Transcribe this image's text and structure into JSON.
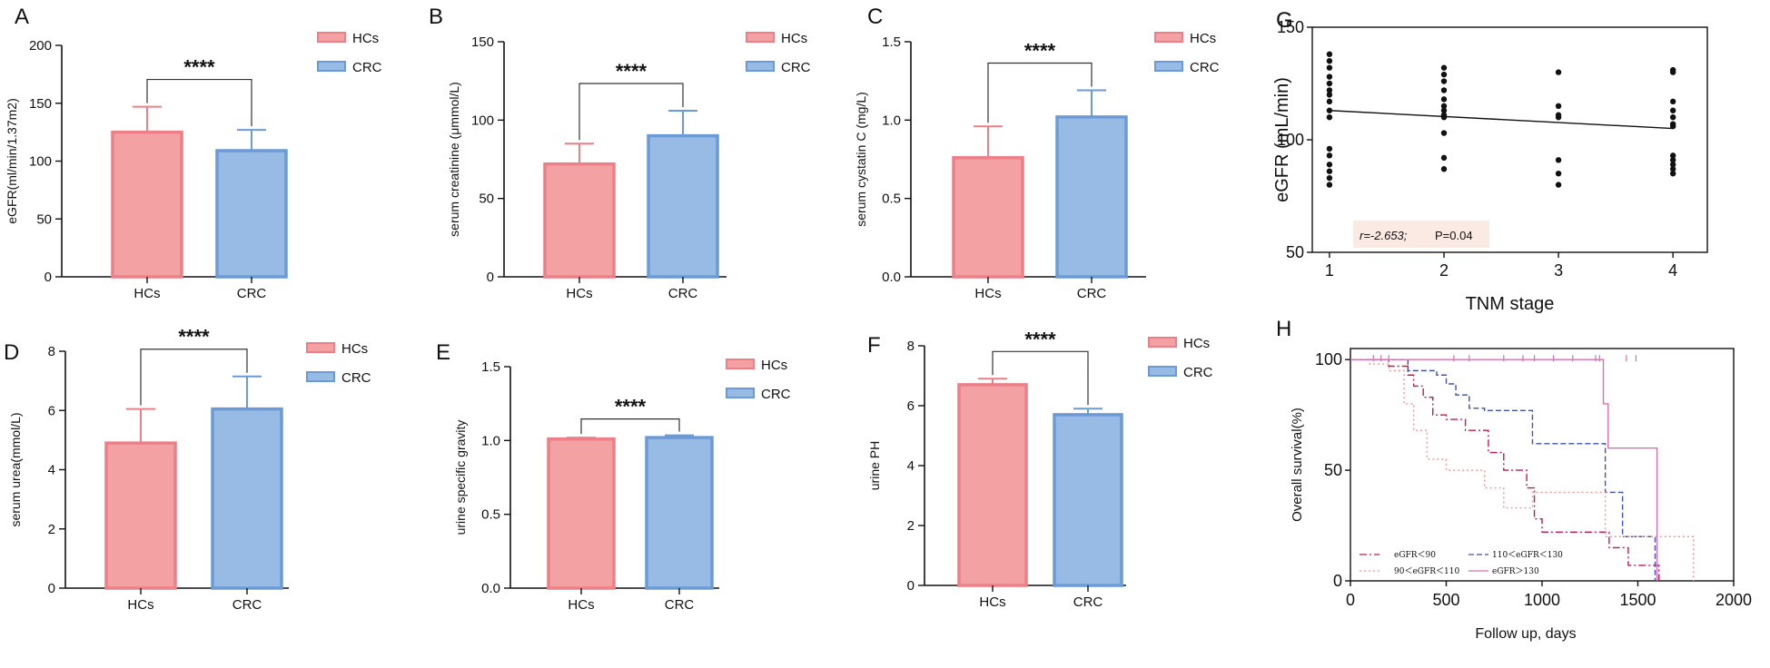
{
  "colors": {
    "hc_fill": "#f4a1a3",
    "hc_edge": "#ec7f87",
    "crc_fill": "#98bbe5",
    "crc_edge": "#6b9bd6",
    "km_red": "#c2185b",
    "km_blue": "#3f51b5",
    "km_pink": "#ff9090",
    "km_magenta": "#d670b0"
  },
  "chart_data": [
    {
      "type": "bar",
      "panel": "A",
      "categories": [
        "HCs",
        "CRC"
      ],
      "values": [
        125,
        109
      ],
      "errors": [
        22,
        18
      ],
      "ylabel": "eGFR(ml/min/1.37m2)",
      "ylim": [
        0,
        200
      ],
      "yticks": [
        "0",
        "50",
        "100",
        "150",
        "200"
      ],
      "legend": [
        "HCs",
        "CRC"
      ],
      "significance": "****"
    },
    {
      "type": "bar",
      "panel": "B",
      "categories": [
        "HCs",
        "CRC"
      ],
      "values": [
        72,
        90
      ],
      "errors": [
        13,
        16
      ],
      "ylabel": "serum creatinine (μmmol/L)",
      "ylim": [
        0,
        150
      ],
      "yticks": [
        "0",
        "50",
        "100",
        "150"
      ],
      "legend": [
        "HCs",
        "CRC"
      ],
      "significance": "****"
    },
    {
      "type": "bar",
      "panel": "C",
      "categories": [
        "HCs",
        "CRC"
      ],
      "values": [
        0.76,
        1.02
      ],
      "errors": [
        0.2,
        0.17
      ],
      "ylabel": "serum cystatin C (mg/L)",
      "ylim": [
        0,
        1.5
      ],
      "yticks": [
        "0.0",
        "0.5",
        "1.0",
        "1.5"
      ],
      "legend": [
        "HCs",
        "CRC"
      ],
      "significance": "****"
    },
    {
      "type": "bar",
      "panel": "D",
      "categories": [
        "HCs",
        "CRC"
      ],
      "values": [
        4.9,
        6.05
      ],
      "errors": [
        1.15,
        1.1
      ],
      "ylabel": "serum urea(mmol/L)",
      "ylim": [
        0,
        8
      ],
      "yticks": [
        "0",
        "2",
        "4",
        "6",
        "8"
      ],
      "legend": [
        "HCs",
        "CRC"
      ],
      "significance": "****"
    },
    {
      "type": "bar",
      "panel": "E",
      "categories": [
        "HCs",
        "CRC"
      ],
      "values": [
        1.01,
        1.02
      ],
      "errors": [
        0.01,
        0.015
      ],
      "ylabel": "urine specific gravity",
      "ylim": [
        0,
        1.5
      ],
      "yticks": [
        "0.0",
        "0.5",
        "1.0",
        "1.5"
      ],
      "legend": [
        "HCs",
        "CRC"
      ],
      "significance": "****"
    },
    {
      "type": "bar",
      "panel": "F",
      "categories": [
        "HCs",
        "CRC"
      ],
      "values": [
        6.7,
        5.7
      ],
      "errors": [
        0.2,
        0.2
      ],
      "ylabel": "urine PH",
      "ylim": [
        0,
        8
      ],
      "yticks": [
        "0",
        "2",
        "4",
        "6",
        "8"
      ],
      "legend": [
        "HCs",
        "CRC"
      ],
      "significance": "****"
    },
    {
      "type": "scatter",
      "panel": "G",
      "xlabel": "TNM stage",
      "ylabel": "eGFR  (mL/min)",
      "xlim": [
        0.85,
        4.3
      ],
      "ylim": [
        50,
        150
      ],
      "xticks": [
        "1",
        "2",
        "3",
        "4"
      ],
      "yticks": [
        "50",
        "100",
        "150"
      ],
      "points": [
        [
          1,
          138
        ],
        [
          1,
          135
        ],
        [
          1,
          132
        ],
        [
          1,
          128
        ],
        [
          1,
          125
        ],
        [
          1,
          122
        ],
        [
          1,
          120
        ],
        [
          1,
          117
        ],
        [
          1,
          113
        ],
        [
          1,
          110
        ],
        [
          1,
          96
        ],
        [
          1,
          93
        ],
        [
          1,
          89
        ],
        [
          1,
          86
        ],
        [
          1,
          83
        ],
        [
          1,
          80
        ],
        [
          2,
          132
        ],
        [
          2,
          129
        ],
        [
          2,
          126
        ],
        [
          2,
          122
        ],
        [
          2,
          118
        ],
        [
          2,
          115
        ],
        [
          2,
          113
        ],
        [
          2,
          111
        ],
        [
          2,
          110
        ],
        [
          2,
          103
        ],
        [
          2,
          92
        ],
        [
          2,
          87
        ],
        [
          3,
          130
        ],
        [
          3,
          115
        ],
        [
          3,
          111
        ],
        [
          3,
          110
        ],
        [
          3,
          91
        ],
        [
          3,
          85
        ],
        [
          3,
          80
        ],
        [
          4,
          131
        ],
        [
          4,
          130
        ],
        [
          4,
          117
        ],
        [
          4,
          113
        ],
        [
          4,
          110
        ],
        [
          4,
          107
        ],
        [
          4,
          106
        ],
        [
          4,
          93
        ],
        [
          4,
          91
        ],
        [
          4,
          89
        ],
        [
          4,
          87
        ],
        [
          4,
          85
        ]
      ],
      "fit_line": [
        [
          1,
          113
        ],
        [
          4,
          105
        ]
      ],
      "annotation": {
        "r": "r=-2.653;",
        "p": "P=0.04"
      }
    },
    {
      "type": "line",
      "panel": "H",
      "subtype": "kaplan-meier",
      "xlabel": "Follow up,  days",
      "ylabel": "Overall survival(%)",
      "xlim": [
        0,
        2000
      ],
      "ylim": [
        0,
        100
      ],
      "xticks": [
        "0",
        "500",
        "1000",
        "1500",
        "2000"
      ],
      "yticks": [
        "0",
        "50",
        "100"
      ],
      "series": [
        {
          "name": "eGFR＜90",
          "style": "dashdot",
          "color_key": "km_red",
          "points": [
            [
              0,
              100
            ],
            [
              150,
              100
            ],
            [
              200,
              97
            ],
            [
              300,
              93
            ],
            [
              330,
              88
            ],
            [
              380,
              83
            ],
            [
              430,
              75
            ],
            [
              500,
              73
            ],
            [
              600,
              68
            ],
            [
              720,
              58
            ],
            [
              800,
              50
            ],
            [
              920,
              42
            ],
            [
              960,
              28
            ],
            [
              1000,
              22
            ],
            [
              1300,
              22
            ],
            [
              1350,
              15
            ],
            [
              1450,
              7
            ],
            [
              1600,
              7
            ],
            [
              1610,
              0
            ]
          ]
        },
        {
          "name": "110＜eGFR＜130",
          "style": "dashed",
          "color_key": "km_blue",
          "points": [
            [
              0,
              100
            ],
            [
              250,
              100
            ],
            [
              300,
              95
            ],
            [
              450,
              93
            ],
            [
              500,
              89
            ],
            [
              550,
              84
            ],
            [
              620,
              78
            ],
            [
              700,
              77
            ],
            [
              850,
              77
            ],
            [
              950,
              62
            ],
            [
              1300,
              62
            ],
            [
              1330,
              40
            ],
            [
              1420,
              20
            ],
            [
              1580,
              20
            ],
            [
              1590,
              0
            ]
          ]
        },
        {
          "name": "90＜eGFR＜110",
          "style": "dotted",
          "color_key": "km_pink",
          "points": [
            [
              0,
              100
            ],
            [
              100,
              98
            ],
            [
              200,
              95
            ],
            [
              280,
              80
            ],
            [
              330,
              68
            ],
            [
              400,
              55
            ],
            [
              500,
              50
            ],
            [
              600,
              50
            ],
            [
              700,
              42
            ],
            [
              800,
              33
            ],
            [
              950,
              40
            ],
            [
              1300,
              40
            ],
            [
              1330,
              20
            ],
            [
              1780,
              20
            ],
            [
              1790,
              0
            ]
          ]
        },
        {
          "name": "eGFR＞130",
          "style": "solid",
          "color_key": "km_magenta",
          "points": [
            [
              0,
              100
            ],
            [
              1310,
              100
            ],
            [
              1320,
              80
            ],
            [
              1345,
              60
            ],
            [
              1580,
              60
            ],
            [
              1600,
              0
            ]
          ]
        }
      ]
    }
  ]
}
